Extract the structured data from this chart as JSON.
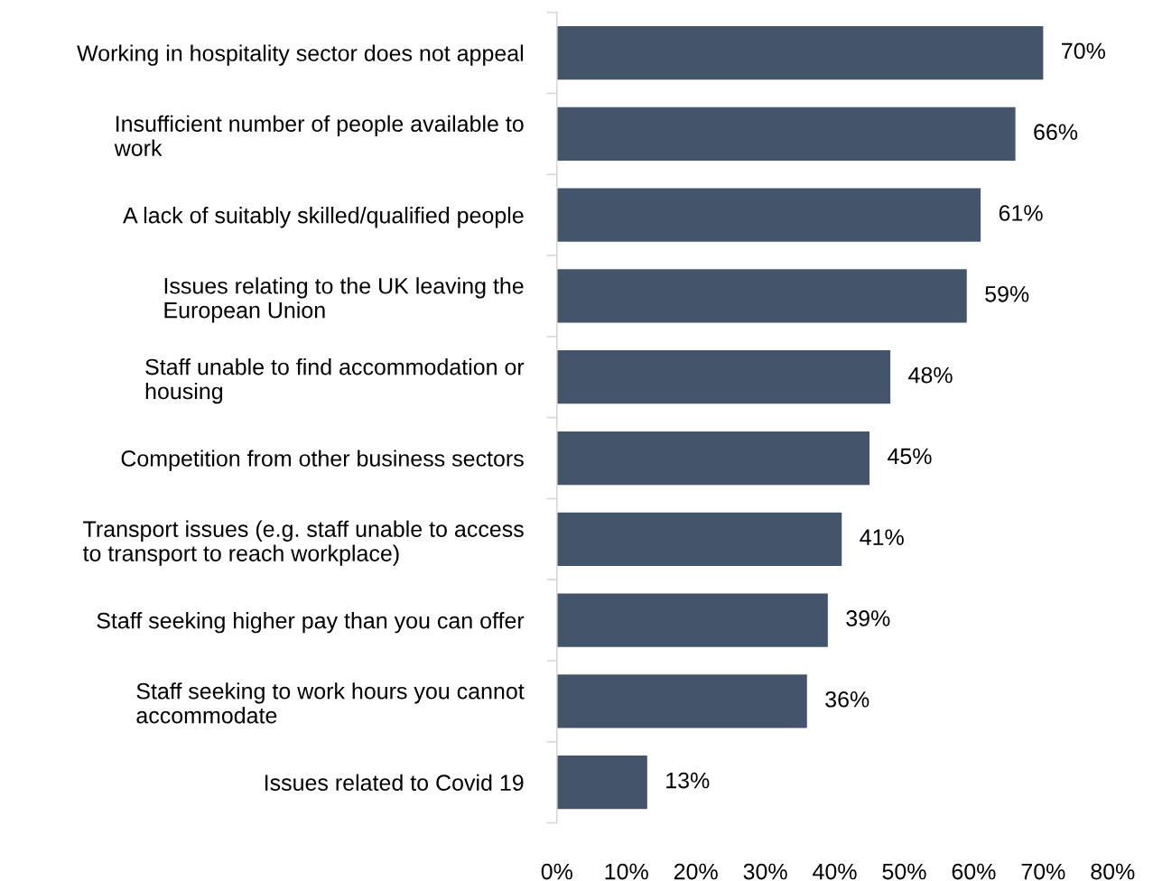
{
  "chart_data": {
    "type": "bar",
    "orientation": "horizontal",
    "categories": [
      "Working in hospitality sector does not appeal",
      "Insufficient number of people available to\nwork",
      "A lack of suitably skilled/qualified people",
      "Issues relating to the UK leaving the\nEuropean Union",
      "Staff unable to find accommodation or\nhousing",
      "Competition from other business sectors",
      "Transport issues (e.g. staff unable to access\nto transport to reach workplace)",
      "Staff seeking higher pay than you can offer",
      "Staff seeking to work hours you cannot\naccommodate",
      "Issues related to Covid 19"
    ],
    "values": [
      70,
      66,
      61,
      59,
      48,
      45,
      41,
      39,
      36,
      13
    ],
    "value_labels": [
      "70%",
      "66%",
      "61%",
      "59%",
      "48%",
      "45%",
      "41%",
      "39%",
      "36%",
      "13%"
    ],
    "color": "#44546a",
    "xlim": [
      0,
      80
    ],
    "xticks": [
      {
        "value": 0,
        "label": "0%"
      },
      {
        "value": 10,
        "label": "10%"
      },
      {
        "value": 20,
        "label": "20%"
      },
      {
        "value": 30,
        "label": "30%"
      },
      {
        "value": 40,
        "label": "40%"
      },
      {
        "value": 50,
        "label": "50%"
      },
      {
        "value": 60,
        "label": "60%"
      },
      {
        "value": 70,
        "label": "70%"
      },
      {
        "value": 80,
        "label": "80%"
      }
    ],
    "grid": false,
    "legend": false
  }
}
